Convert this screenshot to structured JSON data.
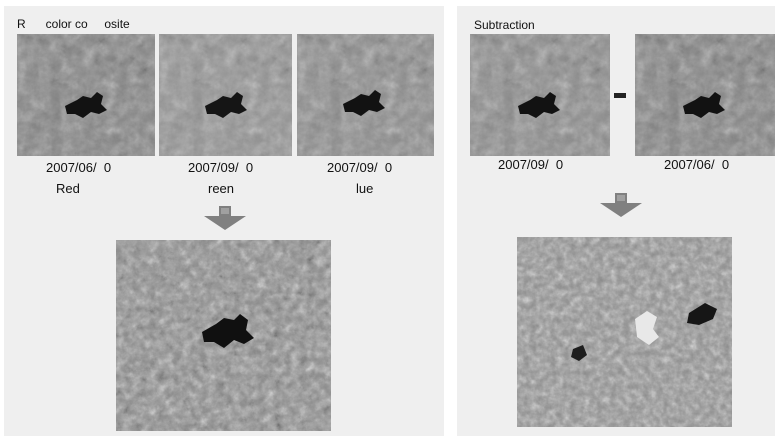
{
  "colors": {
    "panel_bg": "#efefef",
    "arrow_fill": "#808080",
    "image_tone": "#8a8a8a",
    "feature_dark": "#121212"
  },
  "left_panel": {
    "title": "R      color co     osite",
    "inputs": [
      {
        "date": "2007/06/  0",
        "band": "Red"
      },
      {
        "date": "2007/09/  0",
        "band": "reen"
      },
      {
        "date": "2007/09/  0",
        "band": "lue"
      }
    ],
    "arrow_icon": "down-arrow-icon"
  },
  "right_panel": {
    "title": "Subtraction",
    "operator": "-",
    "inputs": [
      {
        "date": "2007/09/  0"
      },
      {
        "date": "2007/06/  0"
      }
    ],
    "arrow_icon": "down-arrow-icon"
  }
}
